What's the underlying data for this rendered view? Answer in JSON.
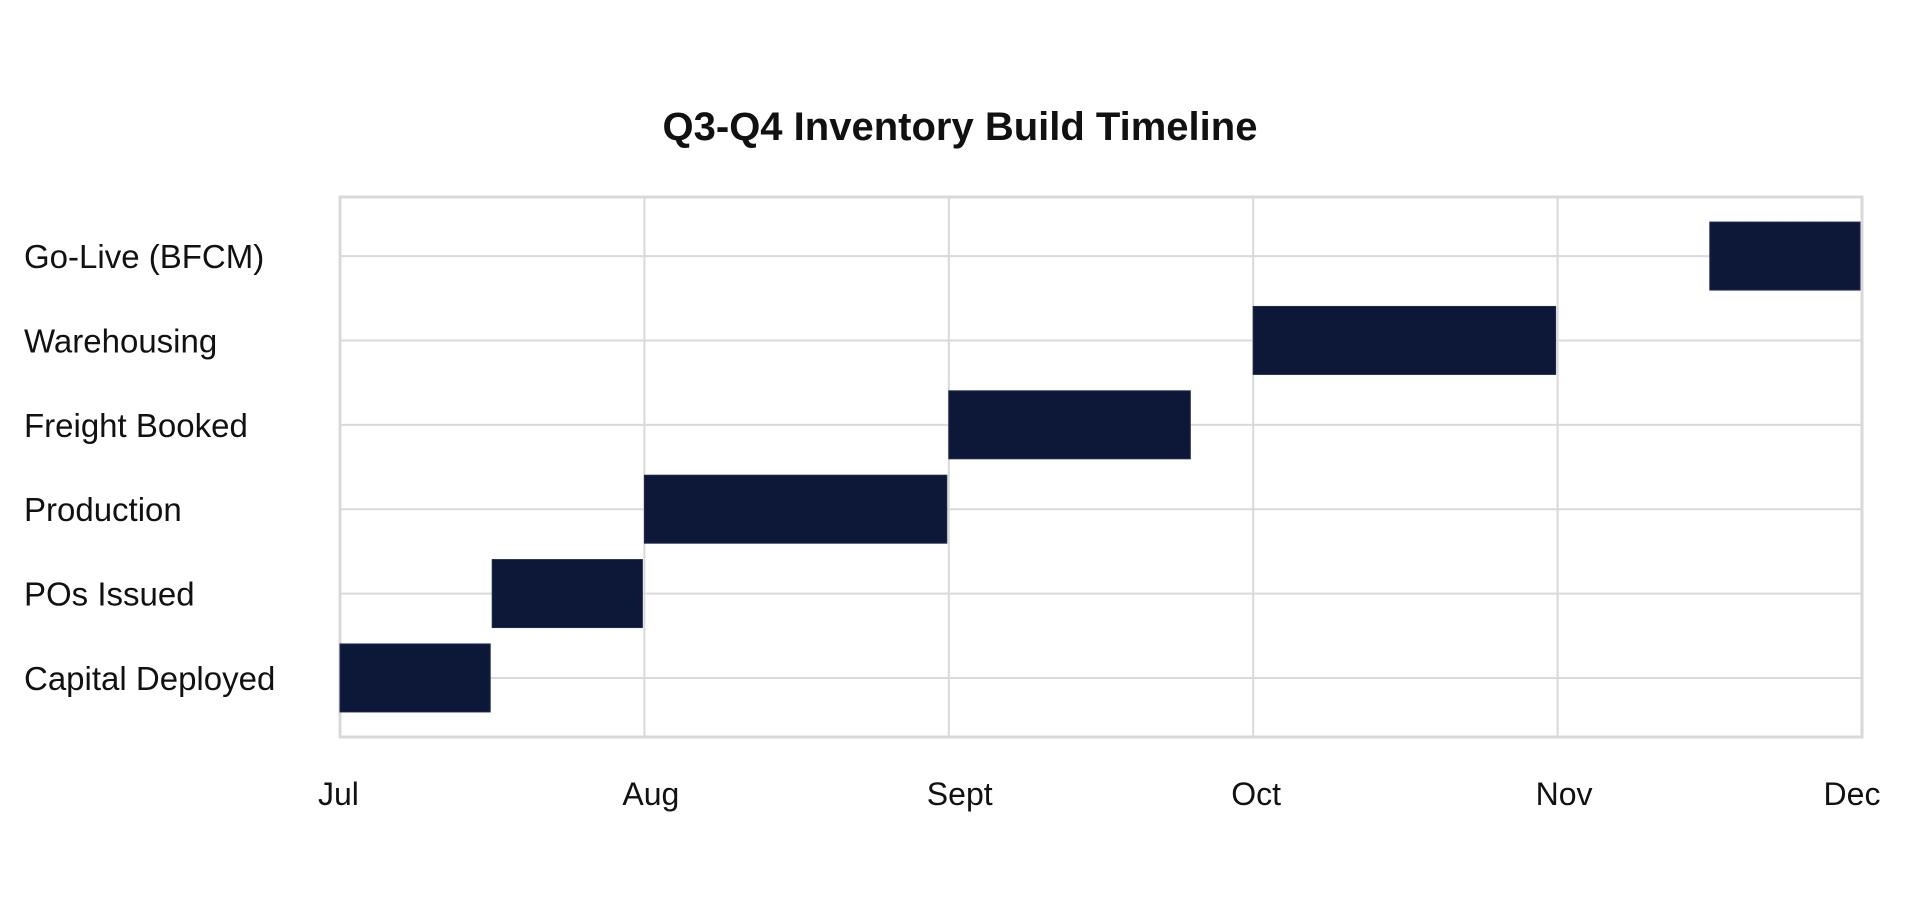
{
  "chart_data": {
    "type": "bar",
    "orientation": "horizontal",
    "stacked_gantt": true,
    "title": "Q3-Q4 Inventory Build Timeline",
    "xlabel": "",
    "ylabel": "",
    "x_ticks": [
      "Jul",
      "Aug",
      "Sept",
      "Oct",
      "Nov",
      "Dec"
    ],
    "xlim": [
      0,
      5
    ],
    "x_units": "months from Jul",
    "categories": [
      "Capital Deployed",
      "POs Issued",
      "Production",
      "Freight Booked",
      "Warehousing",
      "Go-Live (BFCM)"
    ],
    "tasks": [
      {
        "label": "Capital Deployed",
        "start": 0.0,
        "end": 0.5
      },
      {
        "label": "POs Issued",
        "start": 0.5,
        "end": 1.0
      },
      {
        "label": "Production",
        "start": 1.0,
        "end": 2.0
      },
      {
        "label": "Freight Booked",
        "start": 2.0,
        "end": 2.8
      },
      {
        "label": "Warehousing",
        "start": 3.0,
        "end": 4.0
      },
      {
        "label": "Go-Live (BFCM)",
        "start": 4.5,
        "end": 5.0
      }
    ],
    "bar_color": "#0d1838",
    "grid": true,
    "grid_color": "#d9d9d9",
    "legend": "none"
  }
}
